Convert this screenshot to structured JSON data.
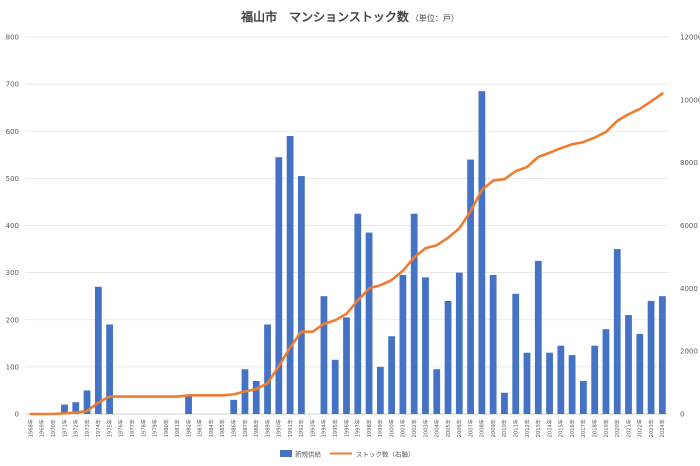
{
  "chart_data": {
    "type": "bar+line",
    "title": "福山市　マンションストック数",
    "subtitle": "（単位：戸）",
    "categories": [
      "1968年",
      "1969年",
      "1970年",
      "1971年",
      "1972年",
      "1973年",
      "1974年",
      "1975年",
      "1976年",
      "1977年",
      "1978年",
      "1979年",
      "1980年",
      "1981年",
      "1982年",
      "1983年",
      "1984年",
      "1985年",
      "1986年",
      "1987年",
      "1988年",
      "1989年",
      "1990年",
      "1991年",
      "1992年",
      "1993年",
      "1994年",
      "1995年",
      "1996年",
      "1997年",
      "1998年",
      "1999年",
      "2000年",
      "2001年",
      "2002年",
      "2003年",
      "2004年",
      "2005年",
      "2006年",
      "2007年",
      "2008年",
      "2009年",
      "2010年",
      "2011年",
      "2012年",
      "2013年",
      "2014年",
      "2015年",
      "2016年",
      "2017年",
      "2018年",
      "2019年",
      "2020年",
      "2021年",
      "2022年",
      "2023年",
      "2024年"
    ],
    "series": [
      {
        "name": "新規供給",
        "type": "bar",
        "axis": "left",
        "color": "#4472C4",
        "values": [
          0,
          0,
          0,
          20,
          25,
          50,
          270,
          190,
          0,
          0,
          0,
          0,
          0,
          0,
          40,
          0,
          0,
          0,
          30,
          95,
          70,
          190,
          545,
          590,
          505,
          0,
          250,
          115,
          205,
          425,
          385,
          100,
          165,
          295,
          425,
          290,
          95,
          240,
          300,
          540,
          685,
          295,
          45,
          255,
          130,
          325,
          130,
          145,
          125,
          70,
          145,
          180,
          350,
          210,
          170,
          240,
          250
        ]
      },
      {
        "name": "ストック数（右軸）",
        "type": "line",
        "axis": "right",
        "color": "#ED7D31",
        "values": [
          0,
          0,
          0,
          20,
          45,
          95,
          365,
          555,
          555,
          555,
          555,
          555,
          555,
          555,
          595,
          595,
          595,
          595,
          625,
          720,
          790,
          980,
          1525,
          2115,
          2620,
          2620,
          2870,
          2985,
          3190,
          3615,
          4000,
          4100,
          4265,
          4560,
          4985,
          5275,
          5370,
          5610,
          5910,
          6450,
          7135,
          7430,
          7475,
          7730,
          7860,
          8185,
          8315,
          8460,
          8585,
          8655,
          8800,
          8980,
          9330,
          9540,
          9710,
          9950,
          10200
        ]
      }
    ],
    "y_left": {
      "min": 0,
      "max": 800,
      "ticks": [
        0,
        100,
        200,
        300,
        400,
        500,
        600,
        700,
        800
      ]
    },
    "y_right": {
      "min": 0,
      "max": 12000,
      "ticks": [
        0,
        2000,
        4000,
        6000,
        8000,
        10000,
        12000
      ]
    },
    "grid": true,
    "legend": "bottom"
  }
}
